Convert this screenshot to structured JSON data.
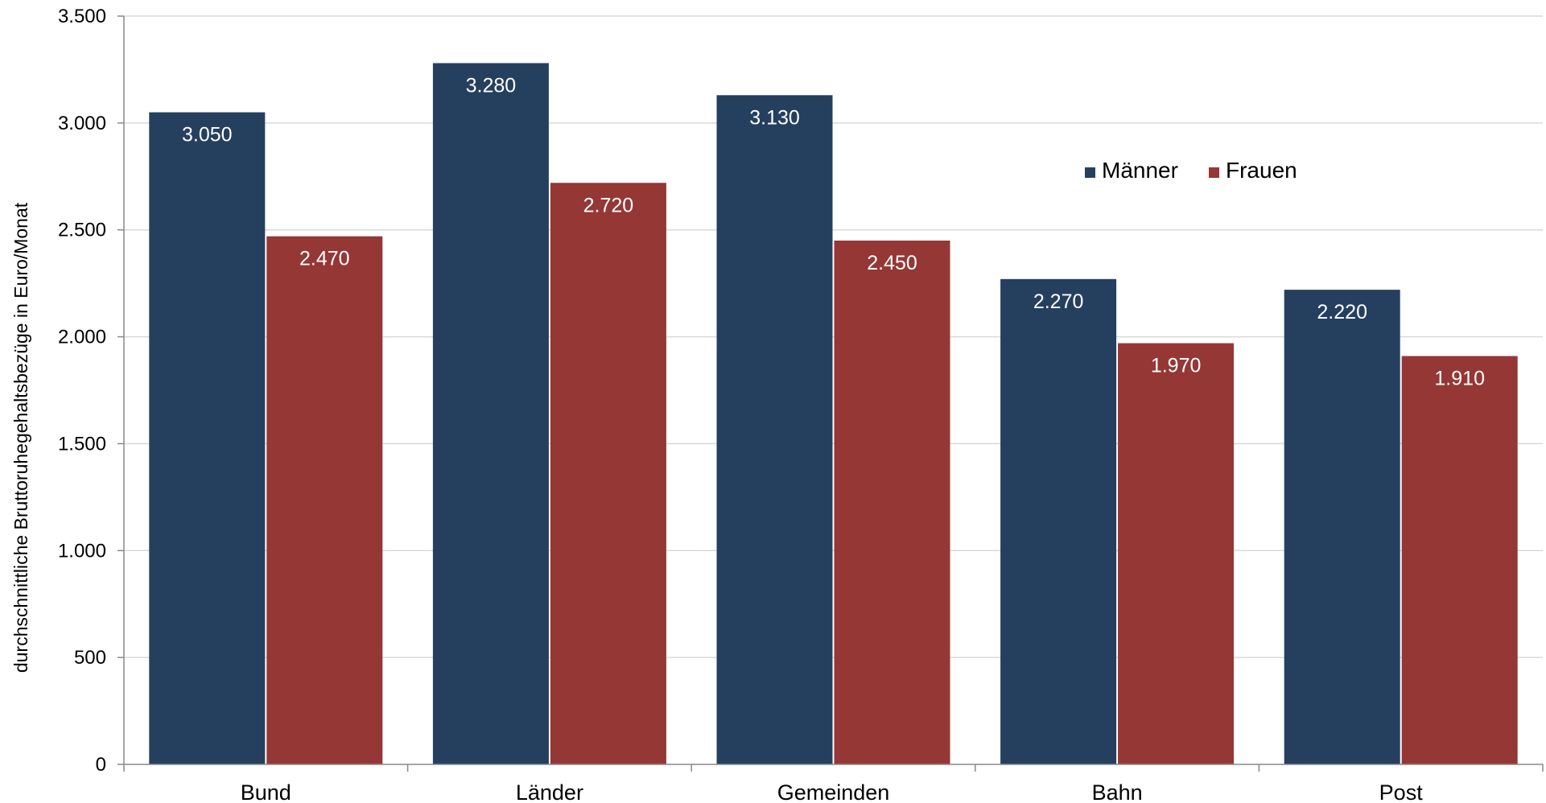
{
  "chart_data": {
    "type": "bar",
    "categories": [
      "Bund",
      "Länder",
      "Gemeinden",
      "Bahn",
      "Post"
    ],
    "series": [
      {
        "name": "Männer",
        "color": "#253F5F",
        "values": [
          3050,
          3280,
          3130,
          2270,
          2220
        ],
        "labels": [
          "3.050",
          "3.280",
          "3.130",
          "2.270",
          "2.220"
        ]
      },
      {
        "name": "Frauen",
        "color": "#953735",
        "values": [
          2470,
          2720,
          2450,
          1970,
          1910
        ],
        "labels": [
          "2.470",
          "2.720",
          "2.450",
          "1.970",
          "1.910"
        ]
      }
    ],
    "title": "",
    "xlabel": "",
    "ylabel": "durchschnittliche Bruttoruhegehaltsbezüge in Euro/Monat",
    "ylim": [
      0,
      3500
    ],
    "yticks": [
      0,
      500,
      1000,
      1500,
      2000,
      2500,
      3000,
      3500
    ],
    "ytick_labels": [
      "0",
      "500",
      "1.000",
      "1.500",
      "2.000",
      "2.500",
      "3.000",
      "3.500"
    ],
    "grid": true,
    "legend_position": "top-right (inside)"
  }
}
